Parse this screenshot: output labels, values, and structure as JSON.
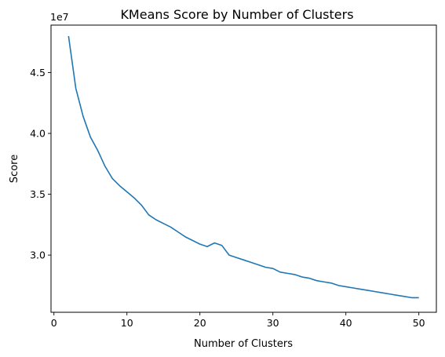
{
  "chart_data": {
    "type": "line",
    "title": "KMeans Score by Number of Clusters",
    "xlabel": "Number of Clusters",
    "ylabel": "Score",
    "y_scale_label": "1e7",
    "xlim": [
      -0.4,
      52.4
    ],
    "ylim": [
      25.3,
      48.9
    ],
    "x_ticks": [
      0,
      10,
      20,
      30,
      40,
      50
    ],
    "x_tick_labels": [
      "0",
      "10",
      "20",
      "30",
      "40",
      "50"
    ],
    "y_ticks": [
      30.0,
      35.0,
      40.0,
      45.0
    ],
    "y_tick_labels": [
      "3.0",
      "3.5",
      "4.0",
      "4.5"
    ],
    "grid": false,
    "series": [
      {
        "color": "#1f77b4",
        "x": [
          2,
          3,
          4,
          5,
          6,
          7,
          8,
          9,
          10,
          11,
          12,
          13,
          14,
          15,
          16,
          17,
          18,
          19,
          20,
          21,
          22,
          23,
          24,
          25,
          26,
          27,
          28,
          29,
          30,
          31,
          32,
          33,
          34,
          35,
          36,
          37,
          38,
          39,
          40,
          41,
          42,
          43,
          44,
          45,
          46,
          47,
          48,
          49,
          50
        ],
        "y": [
          48.0,
          43.7,
          41.4,
          39.7,
          38.6,
          37.3,
          36.3,
          35.7,
          35.2,
          34.7,
          34.1,
          33.3,
          32.9,
          32.6,
          32.3,
          31.9,
          31.5,
          31.2,
          30.9,
          30.7,
          31.0,
          30.8,
          30.0,
          29.8,
          29.6,
          29.4,
          29.2,
          29.0,
          28.9,
          28.6,
          28.5,
          28.4,
          28.2,
          28.1,
          27.9,
          27.8,
          27.7,
          27.5,
          27.4,
          27.3,
          27.2,
          27.1,
          27.0,
          26.9,
          26.8,
          26.7,
          26.6,
          26.5,
          26.5
        ]
      }
    ]
  }
}
